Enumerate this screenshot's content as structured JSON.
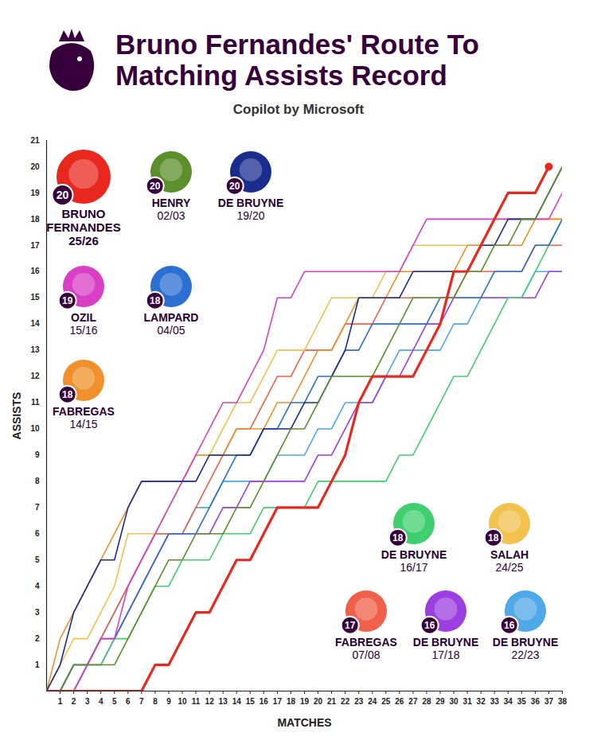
{
  "chart_data": {
    "type": "line",
    "title": "Bruno Fernandes' Route To Matching Assists Record",
    "subtitle": "Copilot by Microsoft",
    "x_label": "MATCHES",
    "y_label": "ASSISTS",
    "x": [
      0,
      1,
      2,
      3,
      4,
      5,
      6,
      7,
      8,
      9,
      10,
      11,
      12,
      13,
      14,
      15,
      16,
      17,
      18,
      19,
      20,
      21,
      22,
      23,
      24,
      25,
      26,
      27,
      28,
      29,
      30,
      31,
      32,
      33,
      34,
      35,
      36,
      37,
      38
    ],
    "xlim": [
      0,
      38
    ],
    "xticks": [
      1,
      2,
      3,
      4,
      5,
      6,
      7,
      8,
      9,
      10,
      11,
      12,
      13,
      14,
      15,
      16,
      17,
      18,
      19,
      20,
      21,
      22,
      23,
      24,
      25,
      26,
      27,
      28,
      29,
      30,
      31,
      32,
      33,
      34,
      35,
      36,
      37,
      38
    ],
    "ylim": [
      0,
      21
    ],
    "yticks": [
      1,
      2,
      3,
      4,
      5,
      6,
      7,
      8,
      9,
      10,
      11,
      12,
      13,
      14,
      15,
      16,
      17,
      18,
      19,
      20,
      21
    ],
    "grid": false,
    "series": [
      {
        "name": "BRUNO FERNANDES",
        "season": "25/26",
        "total": 20,
        "color": "#e8281e",
        "marker": "end",
        "values": [
          0,
          0,
          0,
          0,
          0,
          0,
          0,
          0,
          1,
          1,
          2,
          3,
          3,
          4,
          5,
          5,
          6,
          7,
          7,
          7,
          7,
          8,
          9,
          11,
          12,
          12,
          12,
          12,
          13,
          14,
          16,
          16,
          17,
          18,
          19,
          19,
          19,
          20,
          null
        ]
      },
      {
        "name": "HENRY",
        "season": "02/03",
        "total": 20,
        "color": "#5a8f2a",
        "values": [
          0,
          0,
          1,
          1,
          1,
          1,
          2,
          3,
          4,
          5,
          5,
          6,
          6,
          6,
          7,
          7,
          8,
          9,
          10,
          10,
          11,
          12,
          12,
          12,
          12,
          13,
          14,
          15,
          15,
          15,
          15,
          16,
          16,
          17,
          17,
          18,
          18,
          19,
          20
        ]
      },
      {
        "name": "DE BRUYNE",
        "season": "19/20",
        "total": 20,
        "color": "#1a2d8f",
        "values": [
          0,
          1,
          3,
          4,
          5,
          5,
          7,
          8,
          8,
          8,
          8,
          8,
          9,
          9,
          9,
          9,
          10,
          10,
          10,
          11,
          11,
          12,
          13,
          15,
          15,
          15,
          15,
          16,
          16,
          16,
          16,
          16,
          17,
          17,
          18,
          18,
          18,
          19,
          20
        ]
      },
      {
        "name": "OZIL",
        "season": "15/16",
        "total": 19,
        "color": "#d93fc4",
        "values": [
          0,
          0,
          0,
          1,
          2,
          2,
          4,
          5,
          6,
          7,
          8,
          9,
          10,
          11,
          11,
          12,
          13,
          15,
          15,
          16,
          16,
          16,
          16,
          16,
          16,
          16,
          16,
          17,
          18,
          18,
          18,
          18,
          18,
          18,
          18,
          18,
          18,
          18,
          19
        ]
      },
      {
        "name": "LAMPARD",
        "season": "04/05",
        "total": 18,
        "color": "#2a6fd1",
        "values": [
          0,
          0,
          1,
          1,
          2,
          2,
          3,
          4,
          5,
          6,
          6,
          6,
          7,
          8,
          9,
          9,
          10,
          10,
          11,
          11,
          12,
          12,
          13,
          13,
          14,
          14,
          14,
          14,
          14,
          15,
          15,
          15,
          15,
          16,
          16,
          16,
          17,
          17,
          18
        ]
      },
      {
        "name": "FABREGAS",
        "season": "14/15",
        "total": 18,
        "color": "#f0902a",
        "values": [
          0,
          2,
          3,
          4,
          5,
          6,
          7,
          8,
          8,
          8,
          8,
          9,
          9,
          9,
          10,
          10,
          10,
          11,
          11,
          12,
          13,
          13,
          14,
          15,
          15,
          15,
          16,
          16,
          16,
          16,
          16,
          17,
          17,
          17,
          17,
          17,
          18,
          18,
          18
        ]
      },
      {
        "name": "DE BRUYNE",
        "season": "16/17",
        "total": 18,
        "color": "#3fcf6f",
        "values": [
          0,
          0,
          1,
          1,
          1,
          2,
          2,
          3,
          4,
          4,
          5,
          5,
          5,
          6,
          6,
          6,
          7,
          7,
          7,
          7,
          8,
          8,
          8,
          8,
          8,
          8,
          9,
          9,
          10,
          11,
          12,
          12,
          13,
          14,
          15,
          15,
          16,
          17,
          18
        ]
      },
      {
        "name": "SALAH",
        "season": "24/25",
        "total": 18,
        "color": "#f2c14e",
        "values": [
          0,
          1,
          2,
          2,
          3,
          4,
          6,
          6,
          6,
          7,
          8,
          9,
          9,
          10,
          11,
          11,
          12,
          13,
          13,
          13,
          14,
          15,
          15,
          15,
          15,
          16,
          16,
          17,
          17,
          17,
          17,
          17,
          17,
          18,
          18,
          18,
          18,
          18,
          18
        ]
      },
      {
        "name": "FABREGAS",
        "season": "07/08",
        "total": 17,
        "color": "#f0604a",
        "values": [
          0,
          0,
          1,
          1,
          2,
          3,
          4,
          5,
          6,
          6,
          6,
          7,
          8,
          9,
          10,
          10,
          11,
          12,
          12,
          13,
          13,
          13,
          14,
          14,
          14,
          15,
          15,
          15,
          15,
          15,
          15,
          16,
          16,
          16,
          16,
          16,
          17,
          17,
          17
        ]
      },
      {
        "name": "DE BRUYNE",
        "season": "17/18",
        "total": 16,
        "color": "#9b3fe0",
        "values": [
          0,
          0,
          0,
          1,
          1,
          2,
          3,
          4,
          5,
          6,
          6,
          6,
          6,
          7,
          7,
          8,
          8,
          8,
          8,
          8,
          9,
          9,
          10,
          11,
          11,
          12,
          12,
          13,
          14,
          14,
          15,
          15,
          15,
          15,
          15,
          15,
          15,
          16,
          16
        ]
      },
      {
        "name": "DE BRUYNE",
        "season": "22/23",
        "total": 16,
        "color": "#4fa8e8",
        "values": [
          0,
          0,
          0,
          1,
          2,
          3,
          4,
          5,
          6,
          6,
          6,
          7,
          7,
          8,
          8,
          8,
          8,
          9,
          9,
          9,
          10,
          10,
          11,
          11,
          11,
          12,
          13,
          13,
          13,
          13,
          14,
          14,
          15,
          15,
          15,
          15,
          16,
          16,
          16
        ]
      }
    ]
  }
}
